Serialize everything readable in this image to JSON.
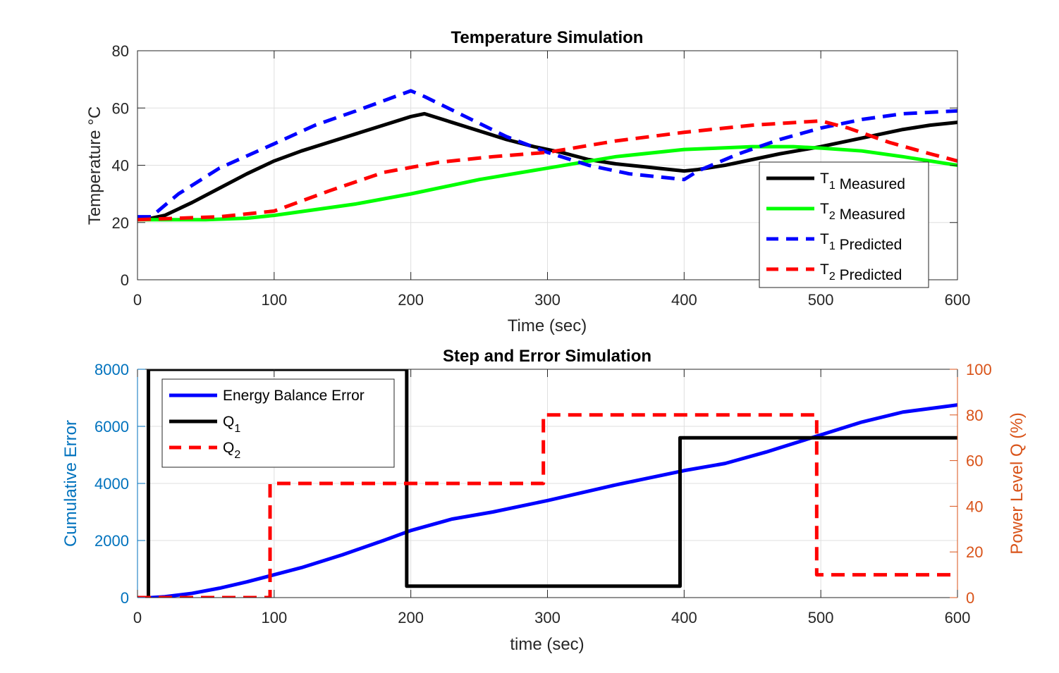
{
  "chart_data": [
    {
      "type": "line",
      "title": "Temperature Simulation",
      "xlabel": "Time (sec)",
      "ylabel": "Temperature °C",
      "xlim": [
        0,
        600
      ],
      "ylim": [
        0,
        80
      ],
      "xticks": [
        0,
        100,
        200,
        300,
        400,
        500,
        600
      ],
      "yticks": [
        0,
        20,
        40,
        60,
        80
      ],
      "grid": true,
      "legend_position": "bottom-right",
      "series": [
        {
          "name": "T₁ Measured",
          "color": "#000000",
          "dash": "solid",
          "points": [
            [
              0,
              21.5
            ],
            [
              10,
              21.5
            ],
            [
              20,
              22.5
            ],
            [
              40,
              27
            ],
            [
              60,
              32
            ],
            [
              80,
              37
            ],
            [
              100,
              41.5
            ],
            [
              120,
              45
            ],
            [
              140,
              48
            ],
            [
              160,
              51
            ],
            [
              180,
              54
            ],
            [
              200,
              57
            ],
            [
              210,
              58
            ],
            [
              230,
              55
            ],
            [
              250,
              52
            ],
            [
              270,
              49
            ],
            [
              290,
              46.5
            ],
            [
              310,
              44.5
            ],
            [
              330,
              42
            ],
            [
              350,
              40.5
            ],
            [
              370,
              39.5
            ],
            [
              390,
              38.5
            ],
            [
              400,
              38
            ],
            [
              410,
              38.5
            ],
            [
              430,
              40
            ],
            [
              450,
              42
            ],
            [
              470,
              44
            ],
            [
              500,
              46.5
            ],
            [
              530,
              49.5
            ],
            [
              560,
              52.5
            ],
            [
              580,
              54
            ],
            [
              600,
              55
            ]
          ]
        },
        {
          "name": "T₂ Measured",
          "color": "#00ff00",
          "dash": "solid",
          "points": [
            [
              0,
              21
            ],
            [
              50,
              21
            ],
            [
              80,
              21.5
            ],
            [
              100,
              22.5
            ],
            [
              130,
              24.5
            ],
            [
              160,
              26.5
            ],
            [
              200,
              30
            ],
            [
              250,
              35
            ],
            [
              300,
              39
            ],
            [
              350,
              43
            ],
            [
              400,
              45.5
            ],
            [
              450,
              46.5
            ],
            [
              480,
              46.5
            ],
            [
              500,
              46
            ],
            [
              530,
              45
            ],
            [
              560,
              43
            ],
            [
              600,
              40
            ]
          ]
        },
        {
          "name": "T₁ Predicted",
          "color": "#0000ff",
          "dash": "dashed",
          "points": [
            [
              0,
              22
            ],
            [
              10,
              22
            ],
            [
              30,
              30
            ],
            [
              60,
              39
            ],
            [
              100,
              47.5
            ],
            [
              130,
              54
            ],
            [
              160,
              59
            ],
            [
              200,
              66
            ],
            [
              210,
              64
            ],
            [
              240,
              57
            ],
            [
              270,
              50
            ],
            [
              300,
              44.5
            ],
            [
              330,
              40
            ],
            [
              360,
              37
            ],
            [
              390,
              35.5
            ],
            [
              400,
              35
            ],
            [
              410,
              38
            ],
            [
              440,
              44
            ],
            [
              470,
              49
            ],
            [
              500,
              53
            ],
            [
              530,
              56
            ],
            [
              560,
              58
            ],
            [
              600,
              59
            ]
          ]
        },
        {
          "name": "T₂ Predicted",
          "color": "#ff0000",
          "dash": "dashed",
          "points": [
            [
              0,
              21
            ],
            [
              60,
              22
            ],
            [
              100,
              24
            ],
            [
              140,
              31
            ],
            [
              180,
              37.5
            ],
            [
              220,
              41
            ],
            [
              260,
              43
            ],
            [
              300,
              44.5
            ],
            [
              350,
              48.5
            ],
            [
              400,
              51.5
            ],
            [
              450,
              54
            ],
            [
              500,
              55.5
            ],
            [
              520,
              53
            ],
            [
              550,
              48
            ],
            [
              580,
              44
            ],
            [
              600,
              41.5
            ]
          ]
        }
      ]
    },
    {
      "type": "line",
      "title": "Step and Error Simulation",
      "xlabel": "time (sec)",
      "ylabel": "Cumulative Error",
      "ylabel_right": "Power Level Q (%)",
      "xlim": [
        0,
        600
      ],
      "ylim": [
        0,
        8000
      ],
      "ylim_right": [
        0,
        100
      ],
      "xticks": [
        0,
        100,
        200,
        300,
        400,
        500,
        600
      ],
      "yticks": [
        0,
        2000,
        4000,
        6000,
        8000
      ],
      "yticks_right": [
        0,
        20,
        40,
        60,
        80,
        100
      ],
      "grid": true,
      "legend_position": "top-left",
      "colors": {
        "left_axis": "#0072bd",
        "right_axis": "#d95319"
      },
      "series": [
        {
          "name": "Energy Balance Error",
          "color": "#0000ff",
          "dash": "solid",
          "axis": "left",
          "points": [
            [
              0,
              0
            ],
            [
              10,
              0
            ],
            [
              20,
              30
            ],
            [
              40,
              150
            ],
            [
              60,
              330
            ],
            [
              80,
              550
            ],
            [
              100,
              800
            ],
            [
              120,
              1050
            ],
            [
              150,
              1500
            ],
            [
              180,
              2000
            ],
            [
              200,
              2350
            ],
            [
              230,
              2750
            ],
            [
              260,
              3000
            ],
            [
              300,
              3400
            ],
            [
              350,
              3950
            ],
            [
              400,
              4450
            ],
            [
              430,
              4700
            ],
            [
              460,
              5100
            ],
            [
              500,
              5700
            ],
            [
              530,
              6150
            ],
            [
              560,
              6500
            ],
            [
              600,
              6750
            ]
          ]
        },
        {
          "name": "Q₁",
          "color": "#000000",
          "dash": "solid",
          "axis": "right",
          "points": [
            [
              0,
              0
            ],
            [
              8,
              0
            ],
            [
              8,
              100
            ],
            [
              197,
              100
            ],
            [
              197,
              5
            ],
            [
              397,
              5
            ],
            [
              397,
              70
            ],
            [
              600,
              70
            ]
          ]
        },
        {
          "name": "Q₂",
          "color": "#ff0000",
          "dash": "dashed",
          "axis": "right",
          "points": [
            [
              0,
              0
            ],
            [
              97,
              0
            ],
            [
              97,
              50
            ],
            [
              297,
              50
            ],
            [
              297,
              80
            ],
            [
              497,
              80
            ],
            [
              497,
              10
            ],
            [
              600,
              10
            ]
          ]
        }
      ]
    }
  ]
}
